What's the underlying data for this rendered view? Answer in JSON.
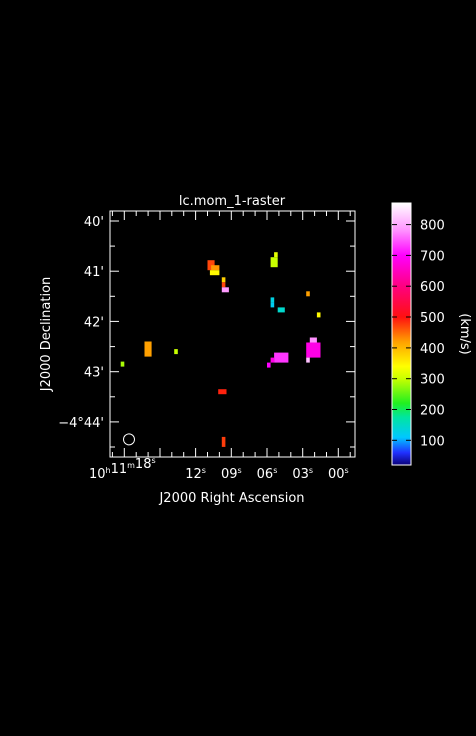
{
  "chart_data": {
    "type": "heatmap",
    "title": "lc.mom_1-raster",
    "xlabel": "J2000 Right Ascension",
    "ylabel": "J2000 Declination",
    "colorbar_label": "(km/s)",
    "background": "#000000",
    "frame_color": "#ffffff",
    "x_axis": {
      "unit": "seconds of RA past 10h11m00s",
      "range": [
        19.2,
        -1.4
      ],
      "ticks": [
        {
          "value": 18,
          "label_hms": [
            "10",
            "11",
            "18"
          ]
        },
        {
          "value": 12,
          "label": "12",
          "unit": "s"
        },
        {
          "value": 9,
          "label": "09",
          "unit": "s"
        },
        {
          "value": 6,
          "label": "06",
          "unit": "s"
        },
        {
          "value": 3,
          "label": "03",
          "unit": "s"
        },
        {
          "value": 0,
          "label": "00",
          "unit": "s"
        }
      ]
    },
    "y_axis": {
      "unit": "arcmin offset from -4°40'",
      "range": [
        -0.2,
        4.7
      ],
      "ticks": [
        {
          "value": 0,
          "label": "40'"
        },
        {
          "value": 1,
          "label": "41'"
        },
        {
          "value": 2,
          "label": "42'"
        },
        {
          "value": 3,
          "label": "43'"
        },
        {
          "value": 4,
          "label": "−4°44'"
        }
      ]
    },
    "colorbar": {
      "range": [
        20,
        870
      ],
      "ticks": [
        {
          "value": 100,
          "label": "100"
        },
        {
          "value": 200,
          "label": "200"
        },
        {
          "value": 300,
          "label": "300"
        },
        {
          "value": 400,
          "label": "400"
        },
        {
          "value": 500,
          "label": "500"
        },
        {
          "value": 600,
          "label": "600"
        },
        {
          "value": 700,
          "label": "700"
        },
        {
          "value": 800,
          "label": "800"
        }
      ],
      "stops": [
        {
          "v": 20,
          "c": "#0a0078"
        },
        {
          "v": 60,
          "c": "#2030ff"
        },
        {
          "v": 110,
          "c": "#00c8ff"
        },
        {
          "v": 175,
          "c": "#00e6a0"
        },
        {
          "v": 220,
          "c": "#20f020"
        },
        {
          "v": 300,
          "c": "#c8ff00"
        },
        {
          "v": 340,
          "c": "#ffff00"
        },
        {
          "v": 420,
          "c": "#ffa000"
        },
        {
          "v": 500,
          "c": "#ff1010"
        },
        {
          "v": 600,
          "c": "#ff0080"
        },
        {
          "v": 700,
          "c": "#ff00ff"
        },
        {
          "v": 780,
          "c": "#ff90ff"
        },
        {
          "v": 870,
          "c": "#ffffff"
        }
      ]
    },
    "cells": [
      {
        "x": 11.0,
        "y": 0.78,
        "w": 0.6,
        "h": 0.2,
        "v": 470
      },
      {
        "x": 10.7,
        "y": 0.88,
        "w": 0.7,
        "h": 0.1,
        "v": 425
      },
      {
        "x": 10.8,
        "y": 0.98,
        "w": 0.8,
        "h": 0.1,
        "v": 345
      },
      {
        "x": 9.8,
        "y": 1.12,
        "w": 0.3,
        "h": 0.1,
        "v": 380
      },
      {
        "x": 9.8,
        "y": 1.22,
        "w": 0.3,
        "h": 0.1,
        "v": 470
      },
      {
        "x": 9.8,
        "y": 1.32,
        "w": 0.6,
        "h": 0.1,
        "v": 790
      },
      {
        "x": 5.4,
        "y": 0.62,
        "w": 0.3,
        "h": 0.1,
        "v": 320
      },
      {
        "x": 5.7,
        "y": 0.72,
        "w": 0.6,
        "h": 0.2,
        "v": 300
      },
      {
        "x": 5.7,
        "y": 1.52,
        "w": 0.3,
        "h": 0.1,
        "v": 130
      },
      {
        "x": 5.7,
        "y": 1.62,
        "w": 0.3,
        "h": 0.1,
        "v": 120
      },
      {
        "x": 5.1,
        "y": 1.72,
        "w": 0.6,
        "h": 0.1,
        "v": 145
      },
      {
        "x": 2.7,
        "y": 1.4,
        "w": 0.3,
        "h": 0.1,
        "v": 420
      },
      {
        "x": 1.8,
        "y": 1.82,
        "w": 0.3,
        "h": 0.1,
        "v": 345
      },
      {
        "x": 16.3,
        "y": 2.4,
        "w": 0.6,
        "h": 0.3,
        "v": 420
      },
      {
        "x": 13.8,
        "y": 2.55,
        "w": 0.3,
        "h": 0.1,
        "v": 300
      },
      {
        "x": 18.3,
        "y": 2.8,
        "w": 0.3,
        "h": 0.1,
        "v": 285
      },
      {
        "x": 5.4,
        "y": 2.62,
        "w": 1.2,
        "h": 0.2,
        "v": 730
      },
      {
        "x": 5.7,
        "y": 2.72,
        "w": 0.3,
        "h": 0.1,
        "v": 680
      },
      {
        "x": 6.0,
        "y": 2.82,
        "w": 0.3,
        "h": 0.1,
        "v": 700
      },
      {
        "x": 2.4,
        "y": 2.32,
        "w": 0.6,
        "h": 0.1,
        "v": 780
      },
      {
        "x": 2.7,
        "y": 2.42,
        "w": 1.2,
        "h": 0.3,
        "v": 680
      },
      {
        "x": 2.7,
        "y": 2.72,
        "w": 0.3,
        "h": 0.1,
        "v": 820
      },
      {
        "x": 10.1,
        "y": 3.35,
        "w": 0.7,
        "h": 0.1,
        "v": 490
      },
      {
        "x": 9.8,
        "y": 4.3,
        "w": 0.3,
        "h": 0.2,
        "v": 475
      }
    ],
    "beam": {
      "x": 17.6,
      "y": 4.35,
      "r_arcmin": 0.11
    }
  }
}
